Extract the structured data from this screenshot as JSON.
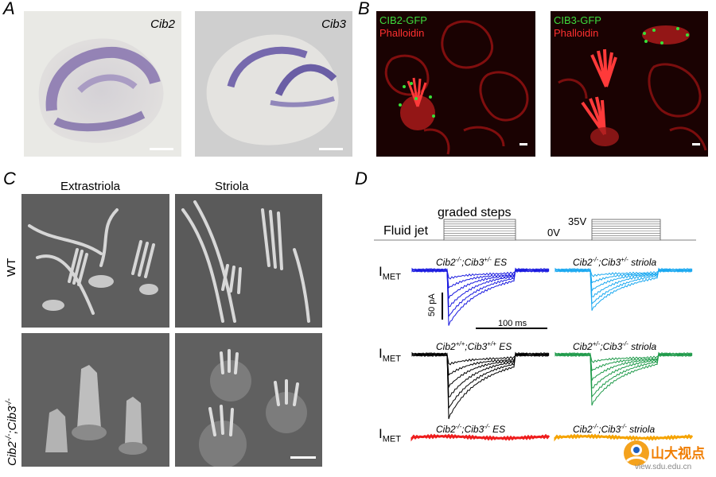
{
  "panels": {
    "A": {
      "letter": "A",
      "images": [
        {
          "label": "Cib2"
        },
        {
          "label": "Cib3"
        }
      ]
    },
    "B": {
      "letter": "B",
      "images": [
        {
          "gfp_label": "CIB2-GFP",
          "stain_label": "Phalloidin"
        },
        {
          "gfp_label": "CIB3-GFP",
          "stain_label": "Phalloidin"
        }
      ]
    },
    "C": {
      "letter": "C",
      "col_headers": [
        "Extrastriola",
        "Striola"
      ],
      "row_header_wt": "WT",
      "row_header_ko_base1": "Cib2",
      "row_header_ko_sup1": "-/-",
      "row_header_ko_sep": ";",
      "row_header_ko_base2": "Cib3",
      "row_header_ko_sup2": "-/-"
    },
    "D": {
      "letter": "D",
      "stimulus": {
        "fluid_jet": "Fluid jet",
        "graded_steps": "graded steps",
        "zero_v": "0V",
        "max_v": "35V"
      },
      "imet_main": "I",
      "imet_sub": "MET",
      "scale_current": "50 pA",
      "scale_time": "100 ms",
      "traces": [
        {
          "base1": "Cib2",
          "sup1": "-/-",
          "base2": ";Cib3",
          "sup2": "+/-",
          "region": " ES",
          "color": "#1a1adf"
        },
        {
          "base1": "Cib2",
          "sup1": "-/-",
          "base2": ";Cib3",
          "sup2": "+/-",
          "region": " striola",
          "color": "#1aa8f0"
        },
        {
          "base1": "Cib2",
          "sup1": "+/+",
          "base2": ";Cib3",
          "sup2": "+/+",
          "region": " ES",
          "color": "#000000"
        },
        {
          "base1": "Cib2",
          "sup1": "+/-",
          "base2": ";Cib3",
          "sup2": "-/-",
          "region": " striola",
          "color": "#1f9a4a"
        },
        {
          "base1": "Cib2",
          "sup1": "-/-",
          "base2": ";Cib3",
          "sup2": "-/-",
          "region": " ES",
          "color": "#ee1c1c"
        },
        {
          "base1": "Cib2",
          "sup1": "-/-",
          "base2": ";Cib3",
          "sup2": "-/-",
          "region": " striola",
          "color": "#f5a300"
        }
      ]
    }
  },
  "watermark": {
    "text_cn": "山大视点",
    "url": "view.sdu.edu.cn"
  }
}
